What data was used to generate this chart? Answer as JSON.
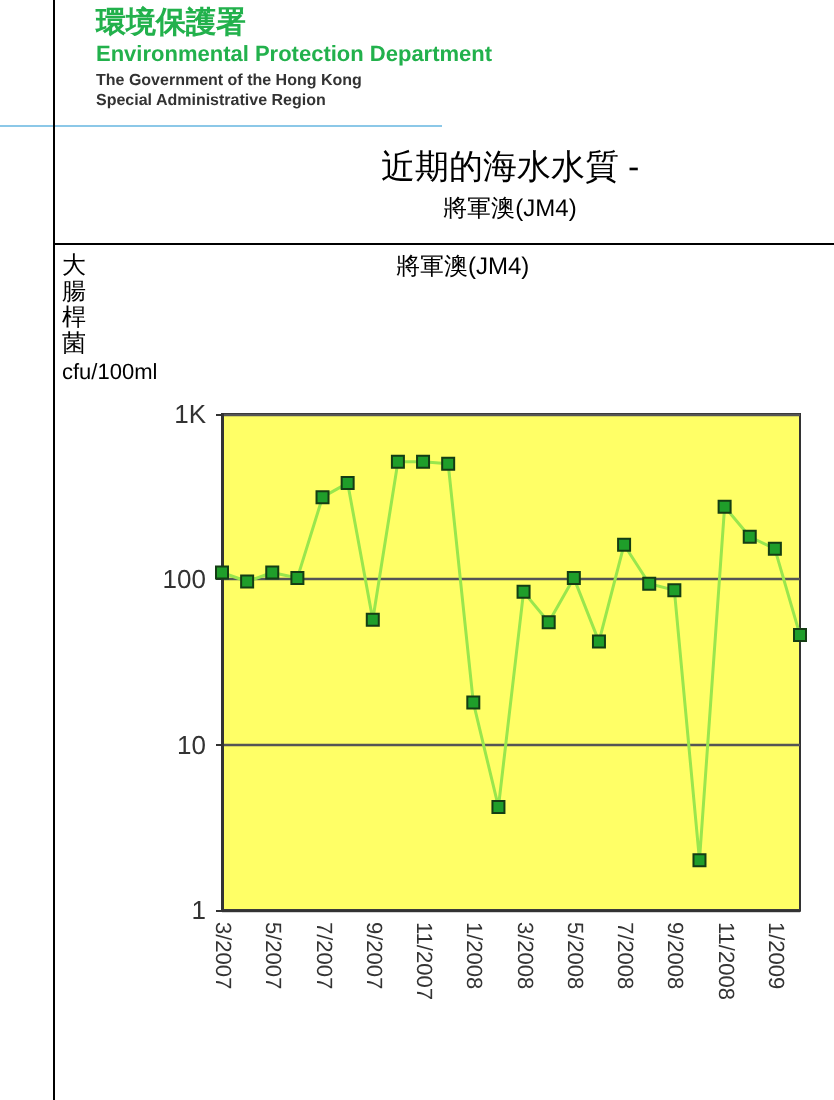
{
  "chart_data": {
    "type": "line",
    "title": "近期的海水水質 -",
    "subtitle": "將軍澳(JM4)",
    "ylabel": "大腸桿菌",
    "annotations": [
      "環境保護署",
      "Environmental Protection Department",
      "The Government of the Hong Kong",
      "Special Administrative Region",
      "將軍澳(JM4)",
      "cfu/100ml"
    ],
    "categories": [
      "3/2007",
      null,
      "5/2007",
      null,
      "7/2007",
      null,
      "9/2007",
      null,
      "11/2007",
      null,
      "1/2008",
      null,
      "3/2008",
      null,
      "5/2008",
      null,
      "7/2008",
      null,
      "9/2008",
      null,
      "11/2008",
      null,
      "1/2009",
      null
    ],
    "series": [
      {
        "color": "#99e64d",
        "values": [
          110,
          97,
          110,
          102,
          314,
          382,
          57,
          514,
          514,
          500,
          18,
          4.2,
          84,
          55,
          102,
          42,
          162,
          94,
          86,
          2.0,
          275,
          181,
          153,
          46
        ]
      }
    ],
    "log": "y",
    "ylim": [
      1,
      1000
    ],
    "yticks": [
      1,
      10,
      100,
      {
        "value": 1000,
        "label": "1K"
      }
    ],
    "grid": "y",
    "marker": "square"
  }
}
